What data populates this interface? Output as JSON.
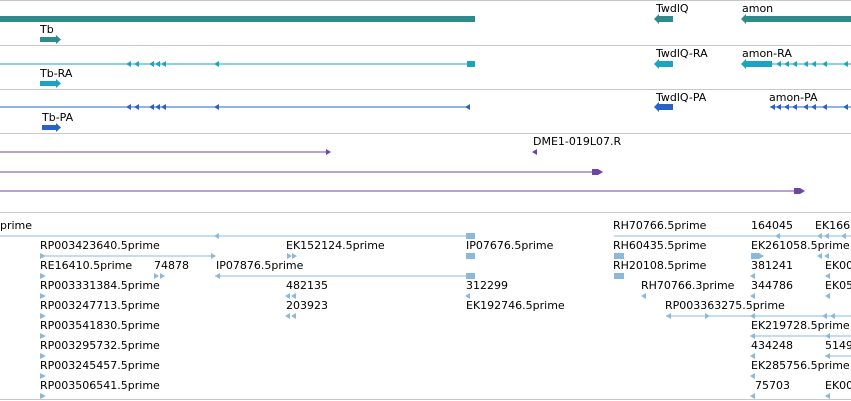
{
  "colors": {
    "gene": "#2e8b8b",
    "transcript": "#1ba3c4",
    "protein": "#2a62c8",
    "clone": "#6f44a6",
    "est": "#8bb8dc",
    "divider": "#c8c8c8"
  },
  "tracks": {
    "gene": {
      "labels": [
        "Tb",
        "TwdlQ",
        "amon"
      ]
    },
    "transcript": {
      "labels": [
        "Tb-RA",
        "TwdlQ-RA",
        "amon-RA"
      ]
    },
    "protein": {
      "labels": [
        "Tb-PA",
        "TwdlQ-PA",
        "amon-PA"
      ]
    },
    "clone": {
      "labels": [
        "DME1-019L07.R"
      ]
    },
    "est": {
      "labels": [
        "prime",
        "RP003423640.5prime",
        "EK152124.5prime",
        "IP07676.5prime",
        "RE16410.5prime",
        "74878",
        "IP07876.5prime",
        "RP003331384.5prime",
        "482135",
        "312299",
        "RP003247713.5prime",
        "203923",
        "EK192746.5prime",
        "RP003541830.5prime",
        "RP003295732.5prime",
        "RP003245457.5prime",
        "RP003506541.5prime",
        "RH70766.5prime",
        "RH60435.5prime",
        "RH20108.5prime",
        "RH70766.3prime",
        "RP003363275.5prime",
        "164045",
        "EK261058.5prime",
        "381241",
        "344786",
        "EK219728.5prime",
        "434248",
        "EK285756.5prime",
        "75703",
        "EK166",
        "EK00",
        "EK05",
        "5149",
        "EK00"
      ]
    }
  }
}
